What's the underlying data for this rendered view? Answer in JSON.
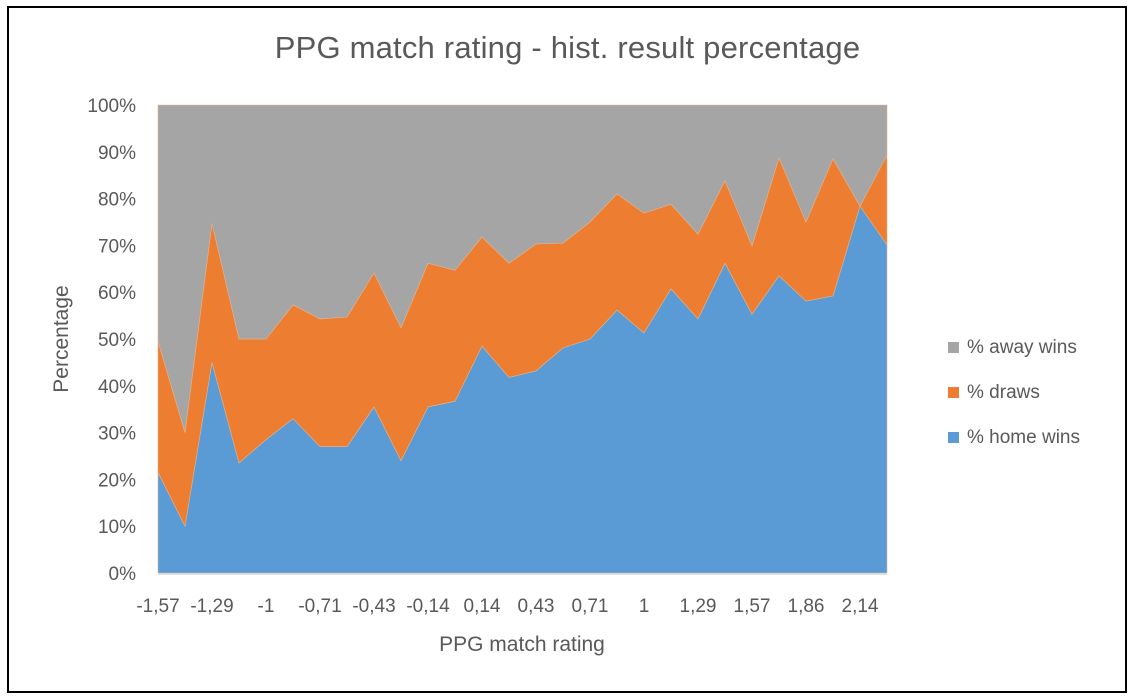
{
  "chart_data": {
    "type": "area",
    "stacked": true,
    "percent_stacked": true,
    "title": "PPG match rating - hist. result percentage",
    "xlabel": "PPG match rating",
    "ylabel": "Percentage",
    "ylim": [
      0,
      100
    ],
    "y_ticks": [
      "0%",
      "10%",
      "20%",
      "30%",
      "40%",
      "50%",
      "60%",
      "70%",
      "80%",
      "90%",
      "100%"
    ],
    "x_tick_labels_shown": [
      "-1,57",
      "-1,29",
      "-1",
      "-0,71",
      "-0,43",
      "-0,14",
      "0,14",
      "0,43",
      "0,71",
      "1",
      "1,29",
      "1,57",
      "1,86",
      "2,14"
    ],
    "categories": [
      "-1,57",
      "-1,43",
      "-1,29",
      "-1,14",
      "-1",
      "-0,86",
      "-0,71",
      "-0,57",
      "-0,43",
      "-0,29",
      "-0,14",
      "0",
      "0,14",
      "0,29",
      "0,43",
      "0,57",
      "0,71",
      "0,86",
      "1",
      "1,14",
      "1,29",
      "1,43",
      "1,57",
      "1,71",
      "1,86",
      "2",
      "2,14",
      "2,29"
    ],
    "series": [
      {
        "name": "% home wins",
        "color": "#5B9BD5",
        "values": [
          21.5,
          10,
          45,
          23.5,
          28.5,
          33,
          27,
          27,
          35.5,
          24,
          35.5,
          36.7,
          48.5,
          41.8,
          43.2,
          48.1,
          50,
          56.2,
          51.3,
          60.7,
          54.3,
          66.2,
          55.3,
          63.5,
          58.1,
          59.2,
          78.4,
          70.1
        ]
      },
      {
        "name": "% draws",
        "color": "#ED7D31",
        "values": [
          28,
          20,
          29.7,
          26.5,
          21.5,
          24.3,
          27.3,
          27.7,
          28.6,
          28.4,
          30.7,
          28,
          23.3,
          24.4,
          27.1,
          22.4,
          25,
          24.8,
          25.6,
          18.1,
          18.1,
          17.6,
          14.6,
          25.2,
          16.9,
          29.3,
          0,
          19.2
        ]
      },
      {
        "name": "% away wins",
        "color": "#A5A5A5",
        "values": [
          50.5,
          70,
          25.3,
          50,
          50,
          42.7,
          45.7,
          45.3,
          35.9,
          47.6,
          33.8,
          35.3,
          28.2,
          33.8,
          29.7,
          29.5,
          25,
          19,
          23.1,
          21.2,
          27.6,
          16.2,
          30.1,
          11.3,
          25,
          11.5,
          21.6,
          10.7
        ]
      }
    ],
    "legend_position": "right",
    "legend_order": [
      "% away wins",
      "% draws",
      "% home wins"
    ],
    "grid": false
  },
  "title": "PPG match rating - hist. result percentage",
  "x_axis_title": "PPG match rating",
  "y_axis_title": "Percentage",
  "legend": [
    {
      "label": "% away wins",
      "color": "#A5A5A5"
    },
    {
      "label": "% draws",
      "color": "#ED7D31"
    },
    {
      "label": "% home wins",
      "color": "#5B9BD5"
    }
  ]
}
